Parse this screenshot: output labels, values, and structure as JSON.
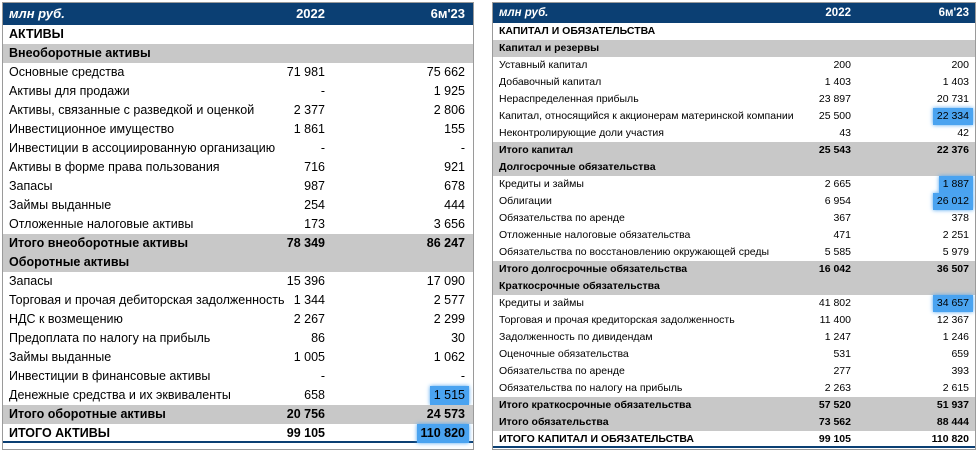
{
  "left": {
    "header": {
      "unit": "млн руб.",
      "col1": "2022",
      "col2": "6м'23"
    },
    "rows": [
      {
        "label": "АКТИВЫ",
        "v1": "",
        "v2": "",
        "style": "title"
      },
      {
        "label": "Внеоборотные активы",
        "v1": "",
        "v2": "",
        "style": "section"
      },
      {
        "label": "Основные средства",
        "v1": "71 981",
        "v2": "75 662",
        "style": ""
      },
      {
        "label": "Активы для продажи",
        "v1": "-",
        "v2": "1 925",
        "style": ""
      },
      {
        "label": "Активы, связанные с разведкой и оценкой",
        "v1": "2 377",
        "v2": "2 806",
        "style": ""
      },
      {
        "label": "Инвестиционное имущество",
        "v1": "1 861",
        "v2": "155",
        "style": ""
      },
      {
        "label": "Инвестиции в ассоциированную организацию",
        "v1": "-",
        "v2": "-",
        "style": ""
      },
      {
        "label": "Активы в форме права пользования",
        "v1": "716",
        "v2": "921",
        "style": ""
      },
      {
        "label": "Запасы",
        "v1": "987",
        "v2": "678",
        "style": ""
      },
      {
        "label": "Займы выданные",
        "v1": "254",
        "v2": "444",
        "style": ""
      },
      {
        "label": "Отложенные налоговые активы",
        "v1": "173",
        "v2": "3 656",
        "style": ""
      },
      {
        "label": "Итого внеоборотные активы",
        "v1": "78 349",
        "v2": "86 247",
        "style": "total"
      },
      {
        "label": "Оборотные активы",
        "v1": "",
        "v2": "",
        "style": "section"
      },
      {
        "label": "Запасы",
        "v1": "15 396",
        "v2": "17 090",
        "style": ""
      },
      {
        "label": "Торговая и прочая дебиторская задолженность",
        "v1": "1 344",
        "v2": "2 577",
        "style": ""
      },
      {
        "label": "НДС к возмещению",
        "v1": "2 267",
        "v2": "2 299",
        "style": ""
      },
      {
        "label": "Предоплата по налогу на прибыль",
        "v1": "86",
        "v2": "30",
        "style": ""
      },
      {
        "label": "Займы выданные",
        "v1": "1 005",
        "v2": "1 062",
        "style": ""
      },
      {
        "label": "Инвестиции в финансовые активы",
        "v1": "-",
        "v2": "-",
        "style": ""
      },
      {
        "label": "Денежные средства и их эквиваленты",
        "v1": "658",
        "v2": "1 515",
        "style": "hl"
      },
      {
        "label": "Итого оборотные активы",
        "v1": "20 756",
        "v2": "24 573",
        "style": "total"
      },
      {
        "label": "ИТОГО АКТИВЫ",
        "v1": "99 105",
        "v2": "110 820",
        "style": "grand-hl"
      }
    ]
  },
  "right": {
    "header": {
      "unit": "млн руб.",
      "col1": "2022",
      "col2": "6м'23"
    },
    "rows": [
      {
        "label": "КАПИТАЛ И ОБЯЗАТЕЛЬСТВА",
        "v1": "",
        "v2": "",
        "style": "title"
      },
      {
        "label": "Капитал и резервы",
        "v1": "",
        "v2": "",
        "style": "section"
      },
      {
        "label": "Уставный капитал",
        "v1": "200",
        "v2": "200",
        "style": ""
      },
      {
        "label": "Добавочный капитал",
        "v1": "1 403",
        "v2": "1 403",
        "style": ""
      },
      {
        "label": "Нераспределенная прибыль",
        "v1": "23 897",
        "v2": "20 731",
        "style": ""
      },
      {
        "label": "Капитал, относящийся к акционерам материнской компании",
        "v1": "25 500",
        "v2": "22 334",
        "style": "hl"
      },
      {
        "label": "Неконтролирующие доли участия",
        "v1": "43",
        "v2": "42",
        "style": ""
      },
      {
        "label": "Итого капитал",
        "v1": "25 543",
        "v2": "22 376",
        "style": "total"
      },
      {
        "label": "Долгосрочные обязательства",
        "v1": "",
        "v2": "",
        "style": "section"
      },
      {
        "label": "Кредиты и займы",
        "v1": "2 665",
        "v2": "1 887",
        "style": "hl"
      },
      {
        "label": "Облигации",
        "v1": "6 954",
        "v2": "26 012",
        "style": "hl"
      },
      {
        "label": "Обязательства по аренде",
        "v1": "367",
        "v2": "378",
        "style": ""
      },
      {
        "label": "Отложенные налоговые обязательства",
        "v1": "471",
        "v2": "2 251",
        "style": ""
      },
      {
        "label": "Обязательства по восстановлению окружающей среды",
        "v1": "5 585",
        "v2": "5 979",
        "style": ""
      },
      {
        "label": "Итого долгосрочные обязательства",
        "v1": "16 042",
        "v2": "36 507",
        "style": "total"
      },
      {
        "label": "Краткосрочные обязательства",
        "v1": "",
        "v2": "",
        "style": "section"
      },
      {
        "label": "Кредиты и займы",
        "v1": "41 802",
        "v2": "34 657",
        "style": "hl"
      },
      {
        "label": "Торговая и прочая кредиторская задолженность",
        "v1": "11 400",
        "v2": "12 367",
        "style": ""
      },
      {
        "label": "Задолженность по дивидендам",
        "v1": "1 247",
        "v2": "1 246",
        "style": ""
      },
      {
        "label": "Оценочные обязательства",
        "v1": "531",
        "v2": "659",
        "style": ""
      },
      {
        "label": "Обязательства по аренде",
        "v1": "277",
        "v2": "393",
        "style": ""
      },
      {
        "label": "Обязательства по налогу на прибыль",
        "v1": "2 263",
        "v2": "2 615",
        "style": ""
      },
      {
        "label": "Итого краткосрочные обязательства",
        "v1": "57 520",
        "v2": "51 937",
        "style": "total"
      },
      {
        "label": "Итого обязательства",
        "v1": "73 562",
        "v2": "88 444",
        "style": "total"
      },
      {
        "label": "ИТОГО КАПИТАЛ И ОБЯЗАТЕЛЬСТВА",
        "v1": "99 105",
        "v2": "110 820",
        "style": "grand"
      }
    ]
  }
}
